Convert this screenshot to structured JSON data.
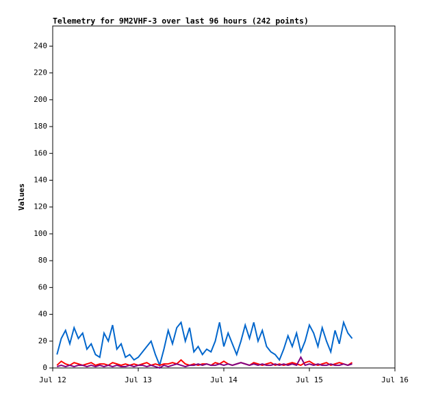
{
  "chart_data": {
    "type": "line",
    "title": "Telemetry for 9M2VHF-3 over last 96 hours (242 points)",
    "y_label": "Values",
    "xlim": [
      12,
      16
    ],
    "xticks": [
      {
        "value": 12,
        "label": "Jul 12"
      },
      {
        "value": 13,
        "label": "Jul 13"
      },
      {
        "value": 14,
        "label": "Jul 14"
      },
      {
        "value": 15,
        "label": "Jul 15"
      },
      {
        "value": 16,
        "label": "Jul 16"
      }
    ],
    "ylim": [
      0,
      255
    ],
    "yticks": [
      0,
      20,
      40,
      60,
      80,
      100,
      120,
      140,
      160,
      180,
      200,
      220,
      240
    ],
    "x": [
      12.05,
      12.1,
      12.15,
      12.2,
      12.25,
      12.3,
      12.35,
      12.4,
      12.45,
      12.5,
      12.55,
      12.6,
      12.65,
      12.7,
      12.75,
      12.8,
      12.85,
      12.9,
      12.95,
      13.0,
      13.05,
      13.1,
      13.15,
      13.2,
      13.25,
      13.3,
      13.35,
      13.4,
      13.45,
      13.5,
      13.55,
      13.6,
      13.65,
      13.7,
      13.75,
      13.8,
      13.85,
      13.9,
      13.95,
      14.0,
      14.05,
      14.1,
      14.15,
      14.2,
      14.25,
      14.3,
      14.35,
      14.4,
      14.45,
      14.5,
      14.55,
      14.6,
      14.65,
      14.7,
      14.75,
      14.8,
      14.85,
      14.9,
      14.95,
      15.0,
      15.05,
      15.1,
      15.15,
      15.2,
      15.25,
      15.3,
      15.35,
      15.4,
      15.45,
      15.5
    ],
    "series": [
      {
        "color": "#0066cc",
        "values": [
          10,
          22,
          28,
          18,
          30,
          22,
          26,
          14,
          18,
          10,
          8,
          26,
          20,
          32,
          14,
          18,
          8,
          10,
          6,
          8,
          12,
          16,
          20,
          10,
          2,
          14,
          28,
          18,
          30,
          34,
          20,
          30,
          12,
          16,
          10,
          14,
          12,
          20,
          34,
          16,
          26,
          18,
          10,
          20,
          32,
          22,
          34,
          20,
          28,
          16,
          12,
          10,
          6,
          14,
          24,
          16,
          26,
          12,
          20,
          32,
          26,
          16,
          30,
          20,
          12,
          28,
          18,
          34,
          26,
          22
        ]
      },
      {
        "color": "#ff0000",
        "values": [
          2,
          5,
          3,
          2,
          4,
          3,
          2,
          3,
          4,
          2,
          3,
          3,
          2,
          4,
          3,
          2,
          3,
          2,
          3,
          2,
          3,
          4,
          2,
          3,
          2,
          3,
          3,
          4,
          3,
          6,
          3,
          2,
          3,
          2,
          3,
          3,
          2,
          4,
          3,
          5,
          3,
          2,
          3,
          4,
          3,
          2,
          4,
          3,
          2,
          3,
          4,
          2,
          3,
          2,
          3,
          4,
          3,
          2,
          4,
          5,
          3,
          2,
          3,
          4,
          2,
          3,
          4,
          3,
          2,
          4
        ]
      },
      {
        "color": "#800080",
        "values": [
          1,
          2,
          1,
          2,
          1,
          2,
          2,
          1,
          2,
          1,
          2,
          1,
          2,
          1,
          2,
          1,
          1,
          2,
          1,
          2,
          2,
          1,
          2,
          1,
          0,
          2,
          1,
          2,
          3,
          2,
          1,
          2,
          2,
          3,
          2,
          3,
          2,
          2,
          3,
          2,
          3,
          2,
          3,
          4,
          3,
          2,
          3,
          2,
          3,
          2,
          2,
          3,
          2,
          3,
          2,
          3,
          2,
          8,
          2,
          3,
          2,
          3,
          2,
          2,
          3,
          2,
          2,
          3,
          2,
          3
        ]
      }
    ]
  }
}
